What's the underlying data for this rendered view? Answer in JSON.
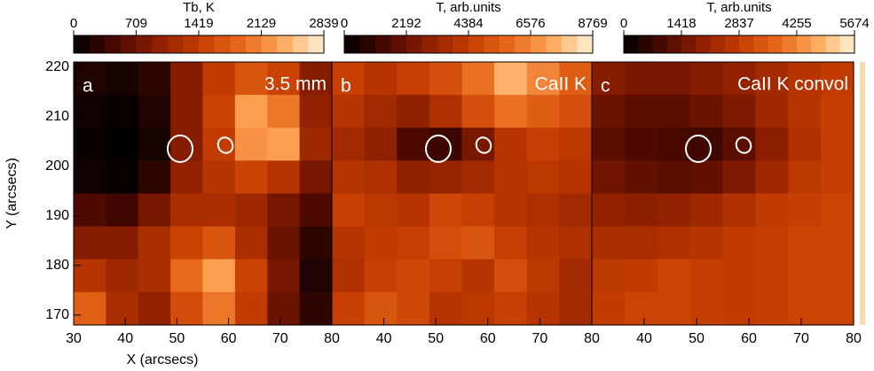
{
  "chart_data": [
    {
      "type": "heatmap",
      "title": "Tb, K",
      "panel_label": "a",
      "annotation": "3.5 mm",
      "x_label": "X (arcsecs)",
      "y_label": "Y (arcsecs)",
      "xlim": [
        30,
        80
      ],
      "ylim": [
        168,
        221
      ],
      "xticks": [
        30,
        40,
        50,
        60,
        70,
        80
      ],
      "yticks": [
        170,
        180,
        190,
        200,
        210,
        220
      ],
      "clim": [
        0,
        2839
      ],
      "cticks": [
        0,
        709,
        1419,
        2129,
        2839
      ],
      "colormap": [
        "#000000",
        "#4a0800",
        "#8c1e00",
        "#c43c00",
        "#e8681a",
        "#ffa85a",
        "#fff2d8"
      ],
      "values": [
        [
          200,
          150,
          300,
          900,
          1400,
          1700,
          1500,
          900
        ],
        [
          100,
          50,
          200,
          900,
          1500,
          2300,
          2000,
          1000
        ],
        [
          50,
          20,
          150,
          900,
          1400,
          2200,
          2300,
          1100
        ],
        [
          100,
          60,
          300,
          1000,
          1300,
          1500,
          1300,
          800
        ],
        [
          500,
          400,
          800,
          1200,
          1200,
          1100,
          800,
          500
        ],
        [
          900,
          900,
          1200,
          1500,
          1700,
          1200,
          700,
          300
        ],
        [
          1300,
          1100,
          1200,
          1900,
          2300,
          1500,
          800,
          200
        ],
        [
          1800,
          1200,
          1000,
          1600,
          2000,
          1400,
          700,
          300
        ]
      ]
    },
    {
      "type": "heatmap",
      "title": "T, arb.units",
      "panel_label": "b",
      "annotation": "CaII K",
      "xlim": [
        30,
        80
      ],
      "ylim": [
        168,
        221
      ],
      "xticks": [
        40,
        50,
        60,
        70,
        80
      ],
      "clim": [
        0,
        8769
      ],
      "cticks": [
        0,
        2192,
        4384,
        6576,
        8769
      ],
      "colormap": [
        "#000000",
        "#4a0800",
        "#8c1e00",
        "#c43c00",
        "#e8681a",
        "#ffa85a",
        "#fff2d8"
      ],
      "values": [
        [
          4500,
          4000,
          4500,
          5000,
          6000,
          7500,
          6500,
          5500
        ],
        [
          4000,
          3500,
          3000,
          3800,
          5000,
          6000,
          5500,
          5000
        ],
        [
          3500,
          3000,
          1500,
          1200,
          2500,
          4000,
          4500,
          4200
        ],
        [
          4000,
          3800,
          3000,
          3200,
          3500,
          4000,
          4200,
          4000
        ],
        [
          4500,
          4200,
          4000,
          4800,
          4500,
          4000,
          3800,
          3500
        ],
        [
          4000,
          4300,
          4500,
          5000,
          5200,
          4500,
          4000,
          3800
        ],
        [
          3800,
          4500,
          4800,
          4500,
          4000,
          5000,
          4200,
          3500
        ],
        [
          4500,
          5200,
          4800,
          4000,
          4200,
          4500,
          4000,
          3500
        ]
      ]
    },
    {
      "type": "heatmap",
      "title": "T, arb.units",
      "panel_label": "c",
      "annotation": "CaII K convol",
      "xlim": [
        30,
        80
      ],
      "ylim": [
        168,
        221
      ],
      "xticks": [
        40,
        50,
        60,
        70,
        80
      ],
      "clim": [
        0,
        5674
      ],
      "cticks": [
        0,
        1418,
        2837,
        4255,
        5674
      ],
      "colormap": [
        "#000000",
        "#4a0800",
        "#8c1e00",
        "#c43c00",
        "#e8681a",
        "#ffa85a",
        "#fff2d8"
      ],
      "values": [
        [
          1800,
          1600,
          1600,
          1800,
          2000,
          2300,
          2600,
          2800
        ],
        [
          1400,
          1200,
          1200,
          1400,
          1700,
          2200,
          2600,
          2900
        ],
        [
          1200,
          1000,
          900,
          800,
          1200,
          1900,
          2500,
          2900
        ],
        [
          1500,
          1300,
          1200,
          1300,
          1700,
          2200,
          2700,
          2900
        ],
        [
          2000,
          1900,
          2000,
          2200,
          2500,
          2800,
          2900,
          3000
        ],
        [
          2400,
          2400,
          2500,
          2600,
          2800,
          2900,
          3000,
          3000
        ],
        [
          2700,
          2800,
          3000,
          2900,
          2800,
          2900,
          3000,
          3000
        ],
        [
          2800,
          3000,
          3000,
          2900,
          2800,
          2900,
          3000,
          3000
        ]
      ]
    }
  ]
}
